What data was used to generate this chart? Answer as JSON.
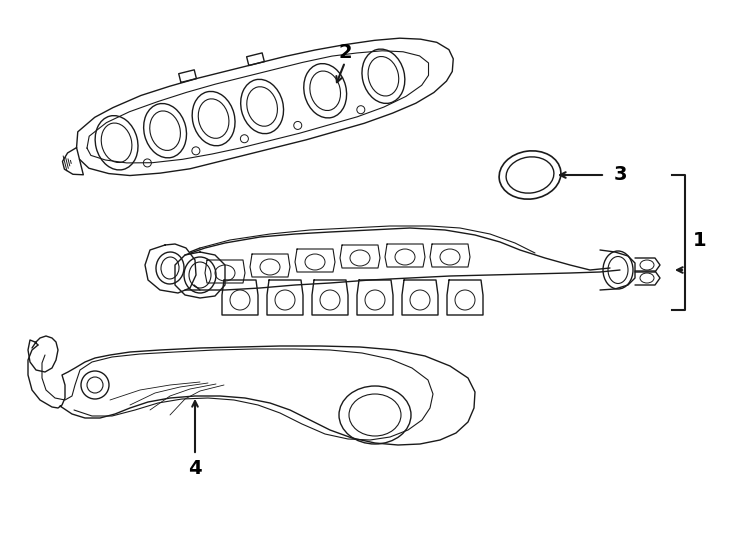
{
  "bg_color": "#ffffff",
  "line_color": "#1a1a1a",
  "lw": 1.0,
  "fig_w": 7.34,
  "fig_h": 5.4,
  "dpi": 100
}
